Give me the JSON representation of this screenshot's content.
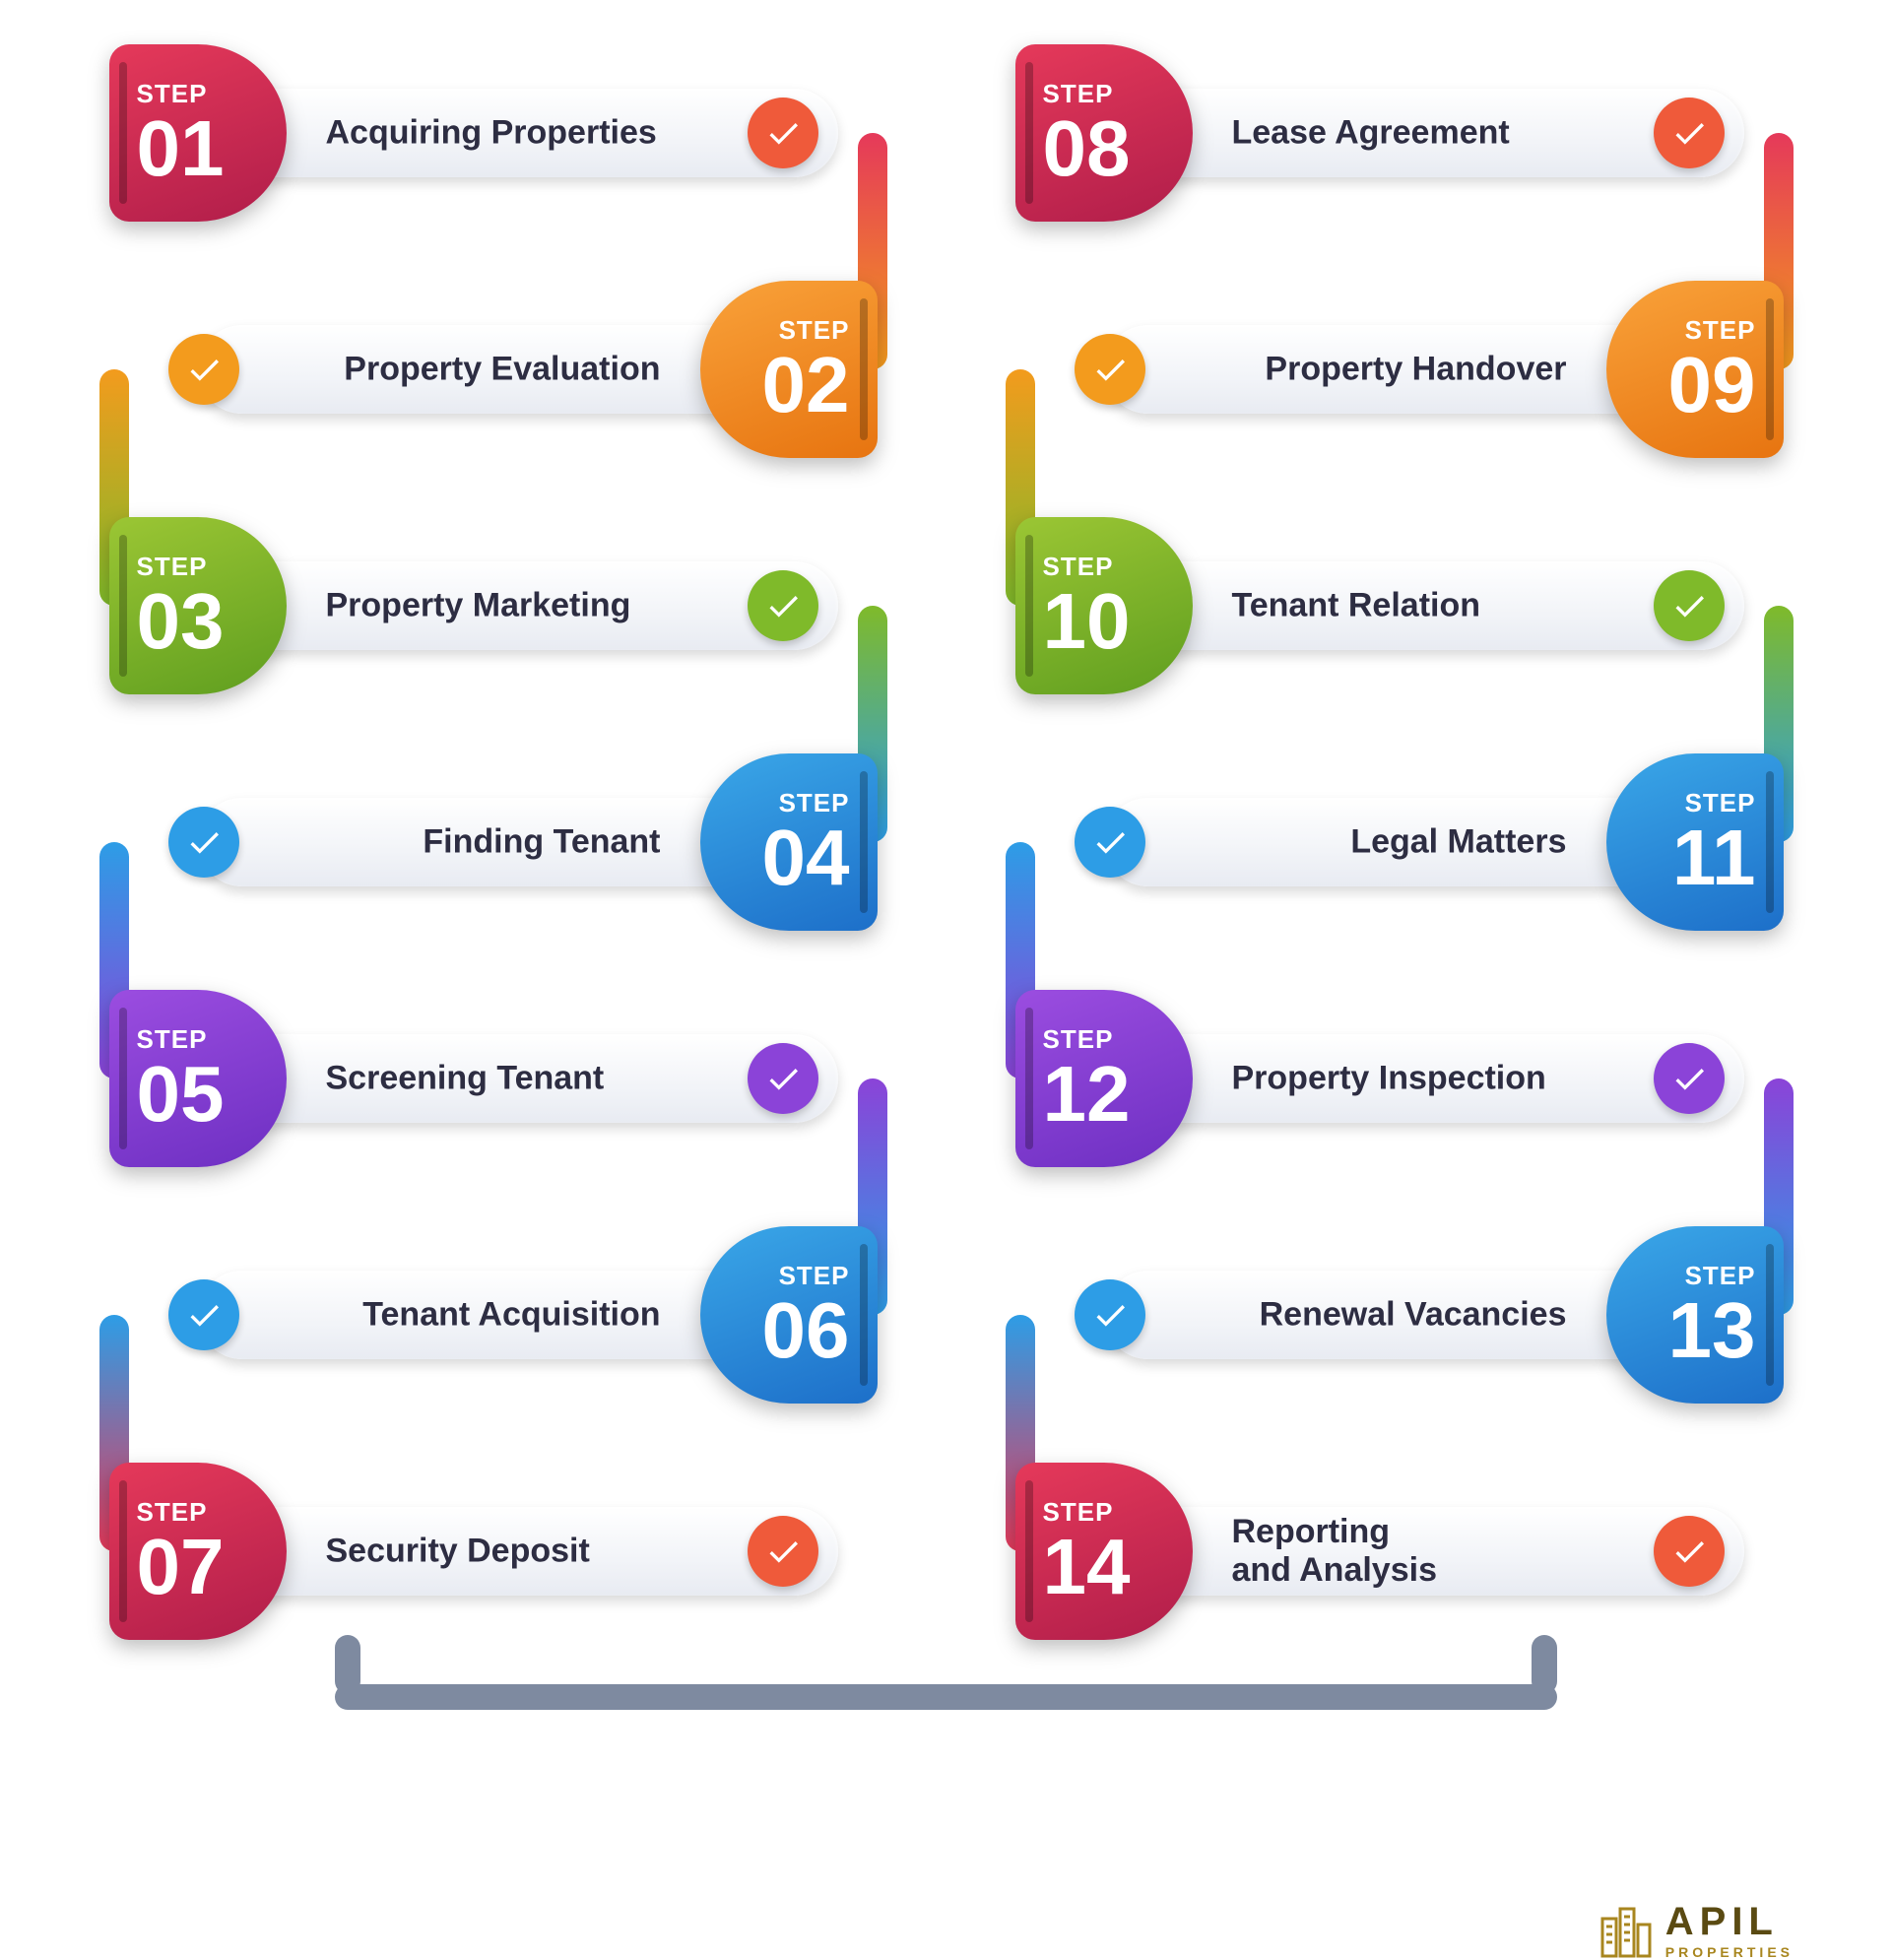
{
  "infographic": {
    "type": "flowchart",
    "background_color": "#ffffff",
    "bar_gradient": [
      "#ffffff",
      "#e8ebf2"
    ],
    "title_color": "#2d2d42",
    "title_fontsize": 34,
    "step_label_text": "STEP",
    "step_label_fontsize": 26,
    "step_num_fontsize": 80,
    "badge_size": 180,
    "check_size": 72,
    "row_gap": 90,
    "column_gap": 140,
    "connector_thickness": 30,
    "palette": {
      "red": {
        "badge": "linear-gradient(160deg,#e5395a,#b01d4a)",
        "check": "#ef5a3a"
      },
      "orange": {
        "badge": "linear-gradient(160deg,#f9a23a,#e77410)",
        "check": "#f39b1d"
      },
      "green": {
        "badge": "linear-gradient(160deg,#9bc634,#5f9e1f)",
        "check": "#7fba2a"
      },
      "blue": {
        "badge": "linear-gradient(160deg,#3aa7e8,#1d6fc9)",
        "check": "#2d9de6"
      },
      "purple": {
        "badge": "linear-gradient(160deg,#9b4de0,#6d2fc2)",
        "check": "#8b43d8"
      }
    },
    "columns": [
      [
        {
          "num": "01",
          "title": "Acquiring Properties",
          "color": "red",
          "badge_side": "left"
        },
        {
          "num": "02",
          "title": "Property Evaluation",
          "color": "orange",
          "badge_side": "right"
        },
        {
          "num": "03",
          "title": "Property Marketing",
          "color": "green",
          "badge_side": "left"
        },
        {
          "num": "04",
          "title": "Finding Tenant",
          "color": "blue",
          "badge_side": "right"
        },
        {
          "num": "05",
          "title": "Screening Tenant",
          "color": "purple",
          "badge_side": "left"
        },
        {
          "num": "06",
          "title": "Tenant Acquisition",
          "color": "blue",
          "badge_side": "right"
        },
        {
          "num": "07",
          "title": "Security Deposit",
          "color": "red",
          "badge_side": "left"
        }
      ],
      [
        {
          "num": "08",
          "title": "Lease Agreement",
          "color": "red",
          "badge_side": "left"
        },
        {
          "num": "09",
          "title": "Property Handover",
          "color": "orange",
          "badge_side": "right"
        },
        {
          "num": "10",
          "title": "Tenant Relation",
          "color": "green",
          "badge_side": "left"
        },
        {
          "num": "11",
          "title": "Legal Matters",
          "color": "blue",
          "badge_side": "right"
        },
        {
          "num": "12",
          "title": "Property Inspection",
          "color": "purple",
          "badge_side": "left"
        },
        {
          "num": "13",
          "title": "Renewal Vacancies",
          "color": "blue",
          "badge_side": "right"
        },
        {
          "num": "14",
          "title": "Reporting and Analysis",
          "color": "red",
          "badge_side": "left"
        }
      ]
    ],
    "connectors": [
      {
        "col": 0,
        "after": 0,
        "side": "right",
        "colors": [
          "#e5395a",
          "#f39b1d"
        ]
      },
      {
        "col": 0,
        "after": 1,
        "side": "left",
        "colors": [
          "#f39b1d",
          "#7fba2a"
        ]
      },
      {
        "col": 0,
        "after": 2,
        "side": "right",
        "colors": [
          "#7fba2a",
          "#2d9de6"
        ]
      },
      {
        "col": 0,
        "after": 3,
        "side": "left",
        "colors": [
          "#2d9de6",
          "#8b43d8"
        ]
      },
      {
        "col": 0,
        "after": 4,
        "side": "right",
        "colors": [
          "#8b43d8",
          "#2d9de6"
        ]
      },
      {
        "col": 0,
        "after": 5,
        "side": "left",
        "colors": [
          "#2d9de6",
          "#e5395a"
        ]
      },
      {
        "col": 1,
        "after": 0,
        "side": "right",
        "colors": [
          "#e5395a",
          "#f39b1d"
        ]
      },
      {
        "col": 1,
        "after": 1,
        "side": "left",
        "colors": [
          "#f39b1d",
          "#7fba2a"
        ]
      },
      {
        "col": 1,
        "after": 2,
        "side": "right",
        "colors": [
          "#7fba2a",
          "#2d9de6"
        ]
      },
      {
        "col": 1,
        "after": 3,
        "side": "left",
        "colors": [
          "#2d9de6",
          "#8b43d8"
        ]
      },
      {
        "col": 1,
        "after": 4,
        "side": "right",
        "colors": [
          "#8b43d8",
          "#2d9de6"
        ]
      },
      {
        "col": 1,
        "after": 5,
        "side": "left",
        "colors": [
          "#2d9de6",
          "#e5395a"
        ]
      }
    ],
    "bottom_connector_color": "#7e8aa0"
  },
  "logo": {
    "brand": "APIL",
    "sub": "PROPERTIES",
    "color_dark": "#5a4a12",
    "color_light": "#a8861f"
  }
}
